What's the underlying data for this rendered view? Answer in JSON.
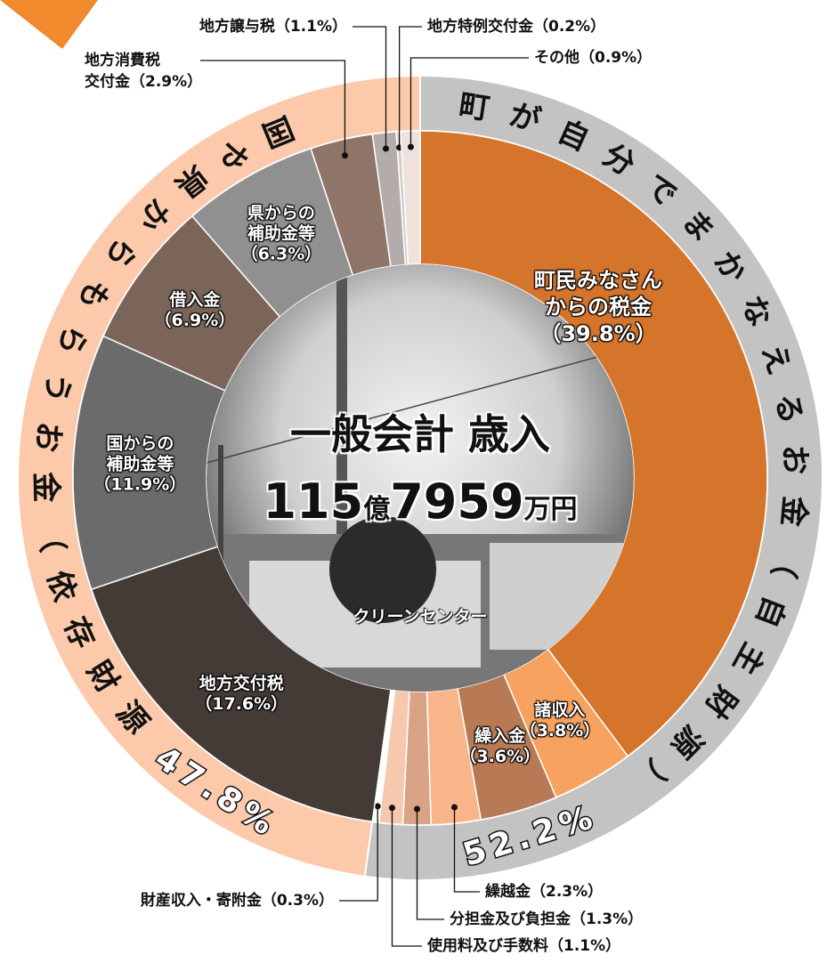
{
  "chart_data": {
    "type": "pie",
    "title": "一般会計 歳入",
    "total_parts": [
      "115",
      "億",
      "7959",
      "万円"
    ],
    "caption": "クリーンセンター",
    "categories": [
      "町民みなさん\nからの税金",
      "諸収入",
      "繰入金",
      "繰越金",
      "分担金及び負担金",
      "使用料及び手数料",
      "財産収入・寄附金",
      "地方交付税",
      "国からの\n補助金等",
      "借入金",
      "県からの\n補助金等",
      "地方消費税\n交付金",
      "地方譲与税",
      "地方特例交付金",
      "その他"
    ],
    "values": [
      39.8,
      3.8,
      3.6,
      2.3,
      1.3,
      1.1,
      0.3,
      17.6,
      11.9,
      6.9,
      6.3,
      2.9,
      1.1,
      0.2,
      0.9
    ],
    "value_labels": [
      "（39.8%）",
      "（3.8%）",
      "（3.6%）",
      "（2.3%）",
      "（1.3%）",
      "（1.1%）",
      "（0.3%）",
      "（17.6%）",
      "（11.9%）",
      "（6.9%）",
      "（6.3%）",
      "（2.9%）",
      "（1.1%）",
      "（0.2%）",
      "（0.9%）"
    ],
    "colors": [
      "#d5742b",
      "#f7a25e",
      "#b87a55",
      "#f8b58a",
      "#d9a385",
      "#f6c8ae",
      "#ffffff",
      "#443b36",
      "#6b6b6b",
      "#7b6558",
      "#909090",
      "#8f7468",
      "#b3acaa",
      "#d3cbc8",
      "#efe2dc"
    ],
    "groups": {
      "categories": [
        "町が自分でまかなえるお金（自主財源）",
        "国や県からもらうお金（依存財源）"
      ],
      "values": [
        52.2,
        47.8
      ],
      "value_labels": [
        "52.2%",
        "47.8%"
      ],
      "colors": [
        "#c3c3c3",
        "#fcc9ab"
      ]
    }
  }
}
